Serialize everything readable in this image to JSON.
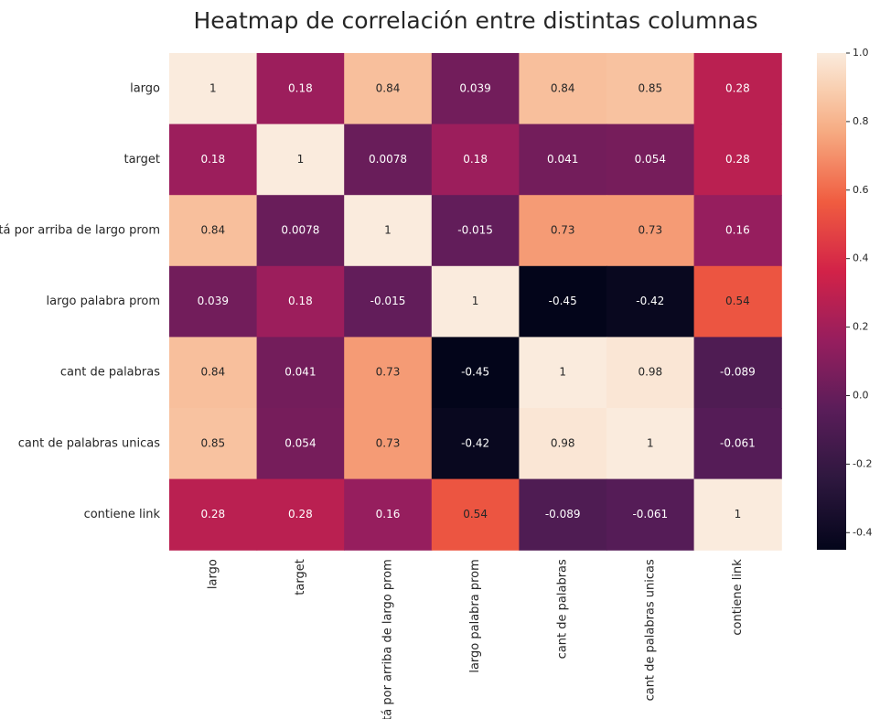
{
  "chart_data": {
    "type": "heatmap",
    "title": "Heatmap de correlación entre distintas columnas",
    "rows": [
      "largo",
      "target",
      "está por arriba de largo prom",
      "largo palabra prom",
      "cant de palabras",
      "cant de palabras unicas",
      "contiene link"
    ],
    "columns": [
      "largo",
      "target",
      "está por arriba de largo prom",
      "largo palabra prom",
      "cant de palabras",
      "cant de palabras unicas",
      "contiene link"
    ],
    "values": [
      [
        1,
        0.18,
        0.84,
        0.039,
        0.84,
        0.85,
        0.28
      ],
      [
        0.18,
        1,
        0.0078,
        0.18,
        0.041,
        0.054,
        0.28
      ],
      [
        0.84,
        0.0078,
        1,
        -0.015,
        0.73,
        0.73,
        0.16
      ],
      [
        0.039,
        0.18,
        -0.015,
        1,
        -0.45,
        -0.42,
        0.54
      ],
      [
        0.84,
        0.041,
        0.73,
        -0.45,
        1,
        0.98,
        -0.089
      ],
      [
        0.85,
        0.054,
        0.73,
        -0.42,
        0.98,
        1,
        -0.061
      ],
      [
        0.28,
        0.28,
        0.16,
        0.54,
        -0.089,
        -0.061,
        1
      ]
    ],
    "colorbar": {
      "range": [
        -0.45,
        1.0
      ],
      "ticks": [
        "1.0",
        "0.8",
        "0.6",
        "0.4",
        "0.2",
        "0.0",
        "-0.2",
        "-0.4"
      ],
      "colormap": "rocket"
    }
  }
}
